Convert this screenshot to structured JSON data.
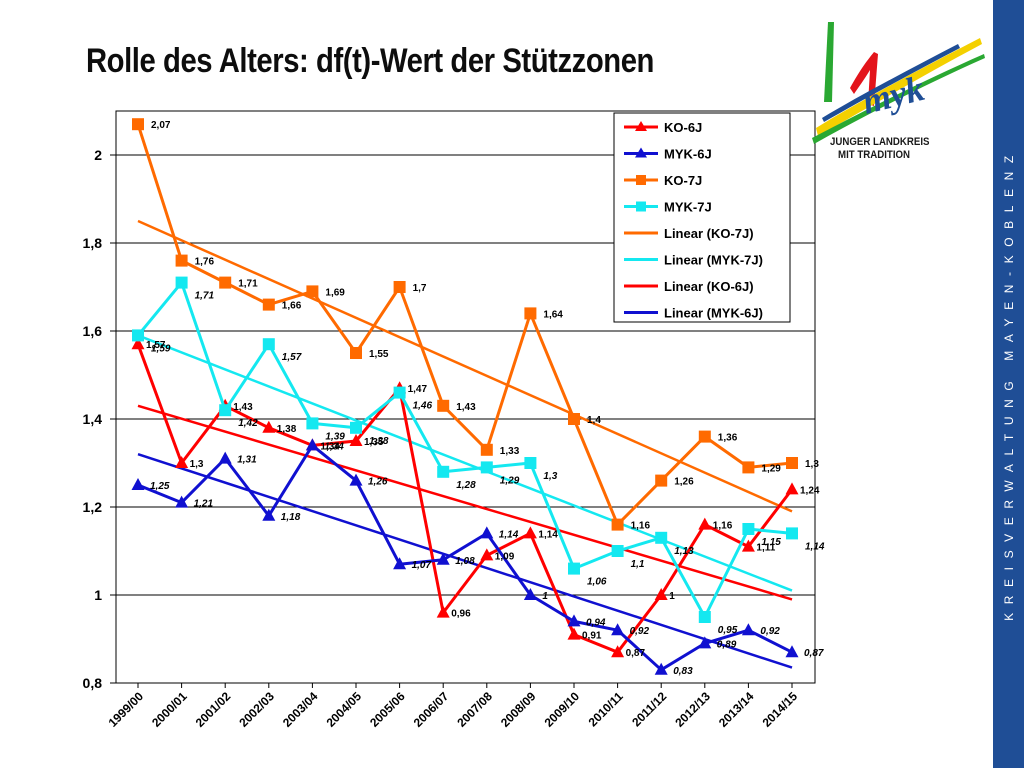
{
  "title": "Rolle des Alters: df(t)-Wert der Stützzonen",
  "sidebar_text": "KREISVERWALTUNG MAYEN-KOBLENZ",
  "logo": {
    "wordmark": "myk",
    "tagline_1": "JUNGER LANDKREIS",
    "tagline_2": "MIT TRADITION"
  },
  "colors": {
    "ko6": "#ff0000",
    "myk6": "#1010d0",
    "ko7": "#ff6a00",
    "myk7": "#14e8f0",
    "sidebar": "#1f4e96"
  },
  "chart_data": {
    "type": "line",
    "categories": [
      "1999/00",
      "2000/01",
      "2001/02",
      "2002/03",
      "2003/04",
      "2004/05",
      "2005/06",
      "2006/07",
      "2007/08",
      "2008/09",
      "2009/10",
      "2010/11",
      "2011/12",
      "2012/13",
      "2013/14",
      "2014/15"
    ],
    "ylim": [
      0.8,
      2.1
    ],
    "yticks": [
      "0,8",
      "1",
      "1,2",
      "1,4",
      "1,6",
      "1,8",
      "2"
    ],
    "ytick_values": [
      0.8,
      1.0,
      1.2,
      1.4,
      1.6,
      1.8,
      2.0
    ],
    "grid": true,
    "legend_position": "top-right",
    "series": [
      {
        "name": "KO-6J",
        "color": "#ff0000",
        "marker": "triangle",
        "values": [
          1.57,
          1.3,
          1.43,
          1.38,
          1.34,
          1.35,
          1.47,
          0.96,
          1.09,
          1.14,
          0.91,
          0.87,
          1.0,
          1.16,
          1.11,
          1.24
        ],
        "labels": [
          "1,57",
          "1,3",
          "1,43",
          "1,38",
          "1,34",
          "1,35",
          "1,47",
          "0,96",
          "1,09",
          "1,14",
          "0,91",
          "0,87",
          "1",
          "1,16",
          "1,11",
          "1,24"
        ]
      },
      {
        "name": "MYK-6J",
        "color": "#1010d0",
        "marker": "triangle",
        "values": [
          1.25,
          1.21,
          1.31,
          1.18,
          1.34,
          1.26,
          1.07,
          1.08,
          1.14,
          1.0,
          0.94,
          0.92,
          0.83,
          0.89,
          0.92,
          0.87
        ],
        "labels": [
          "1,25",
          "1,21",
          "1,31",
          "1,18",
          "1,34",
          "1,26",
          "1,07",
          "1,08",
          "1,14",
          "1",
          "0,94",
          "0,92",
          "0,83",
          "0,89",
          "0,92",
          "0,87"
        ]
      },
      {
        "name": "KO-7J",
        "color": "#ff6a00",
        "marker": "square",
        "values": [
          2.07,
          1.76,
          1.71,
          1.66,
          1.69,
          1.55,
          1.7,
          1.43,
          1.33,
          1.64,
          1.4,
          1.16,
          1.26,
          1.36,
          1.29,
          1.3
        ],
        "labels": [
          "2,07",
          "1,76",
          "1,71",
          "1,66",
          "1,69",
          "1,55",
          "1,7",
          "1,43",
          "1,33",
          "1,64",
          "1,4",
          "1,16",
          "1,26",
          "1,36",
          "1,29",
          "1,3"
        ]
      },
      {
        "name": "MYK-7J",
        "color": "#14e8f0",
        "marker": "square",
        "values": [
          1.59,
          1.71,
          1.42,
          1.57,
          1.39,
          1.38,
          1.46,
          1.28,
          1.29,
          1.3,
          1.06,
          1.1,
          1.13,
          0.95,
          1.15,
          1.14
        ],
        "labels": [
          "1,59",
          "1,71",
          "1,42",
          "1,57",
          "1,39",
          "1,38",
          "1,46",
          "1,28",
          "1,29",
          "1,3",
          "1,06",
          "1,1",
          "1,13",
          "0,95",
          "1,15",
          "1,14"
        ]
      }
    ],
    "trendlines": [
      {
        "name": "Linear (KO-7J)",
        "color": "#ff6a00",
        "start": 1.85,
        "end": 1.19
      },
      {
        "name": "Linear (MYK-7J)",
        "color": "#14e8f0",
        "start": 1.59,
        "end": 1.01
      },
      {
        "name": "Linear (KO-6J)",
        "color": "#ff0000",
        "start": 1.43,
        "end": 0.99
      },
      {
        "name": "Linear (MYK-6J)",
        "color": "#1010d0",
        "start": 1.32,
        "end": 0.835
      }
    ]
  }
}
